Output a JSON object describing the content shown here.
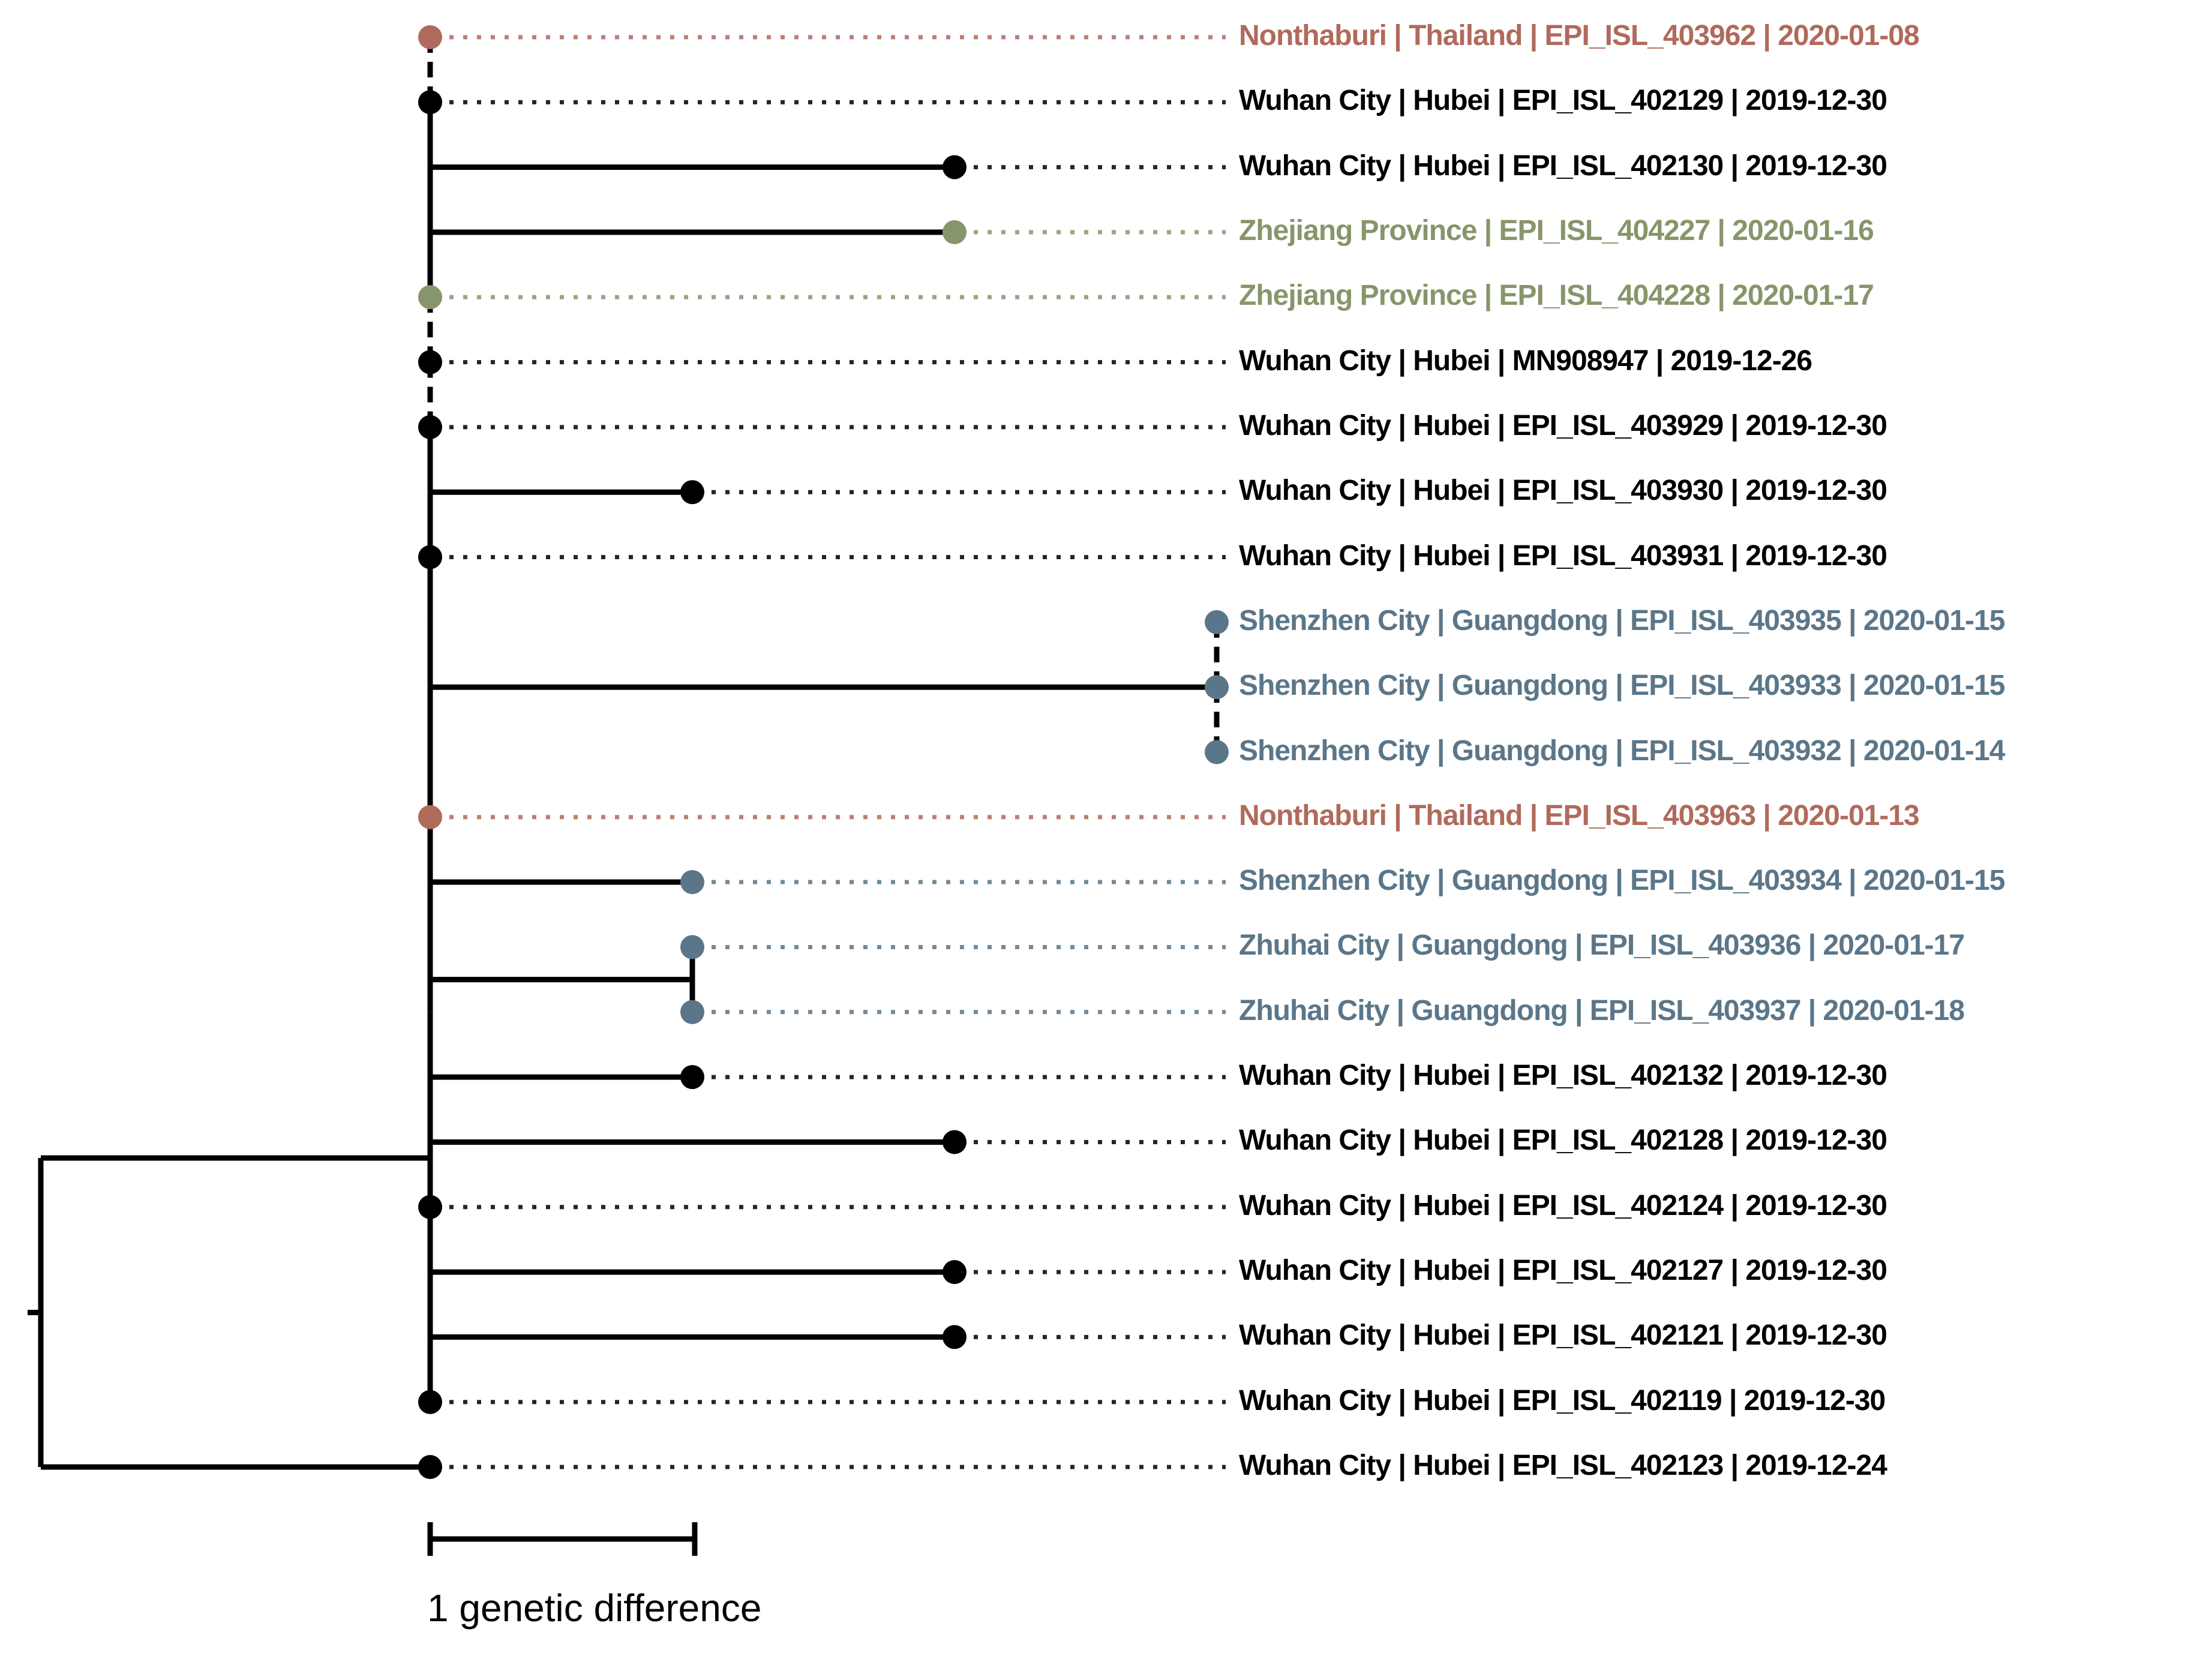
{
  "figure": {
    "type": "phylogenetic-tree",
    "scale_bar": {
      "label": "1 genetic difference",
      "units": 1
    },
    "colors": {
      "hubei": "#000000",
      "thailand": "#b06a5c",
      "zhejiang": "#87966a",
      "guangdong": "#5b7689"
    },
    "taxa": [
      {
        "row": 1,
        "label": "Nonthaburi | Thailand | EPI_ISL_403962 | 2020-01-08",
        "region": "thailand",
        "distance": 0,
        "attach": "trunk"
      },
      {
        "row": 2,
        "label": "Wuhan City | Hubei | EPI_ISL_402129 | 2019-12-30",
        "region": "hubei",
        "distance": 0,
        "attach": "trunk"
      },
      {
        "row": 3,
        "label": "Wuhan City | Hubei | EPI_ISL_402130 | 2019-12-30",
        "region": "hubei",
        "distance": 2,
        "attach": "branch"
      },
      {
        "row": 4,
        "label": "Zhejiang Province | EPI_ISL_404227 | 2020-01-16",
        "region": "zhejiang",
        "distance": 2,
        "attach": "branch"
      },
      {
        "row": 5,
        "label": "Zhejiang Province | EPI_ISL_404228 | 2020-01-17",
        "region": "zhejiang",
        "distance": 0,
        "attach": "trunk"
      },
      {
        "row": 6,
        "label": "Wuhan City | Hubei | MN908947 | 2019-12-26",
        "region": "hubei",
        "distance": 0,
        "attach": "trunk"
      },
      {
        "row": 7,
        "label": "Wuhan City | Hubei | EPI_ISL_403929 | 2019-12-30",
        "region": "hubei",
        "distance": 0,
        "attach": "trunk"
      },
      {
        "row": 8,
        "label": "Wuhan City | Hubei | EPI_ISL_403930 | 2019-12-30",
        "region": "hubei",
        "distance": 1,
        "attach": "branch"
      },
      {
        "row": 9,
        "label": "Wuhan City | Hubei | EPI_ISL_403931 | 2019-12-30",
        "region": "hubei",
        "distance": 0,
        "attach": "trunk"
      },
      {
        "row": 10,
        "label": "Shenzhen City | Guangdong | EPI_ISL_403935 | 2020-01-15",
        "region": "guangdong",
        "distance": 3,
        "attach": "trio"
      },
      {
        "row": 11,
        "label": "Shenzhen City | Guangdong | EPI_ISL_403933 | 2020-01-15",
        "region": "guangdong",
        "distance": 3,
        "attach": "trio"
      },
      {
        "row": 12,
        "label": "Shenzhen City | Guangdong | EPI_ISL_403932 | 2020-01-14",
        "region": "guangdong",
        "distance": 3,
        "attach": "trio"
      },
      {
        "row": 13,
        "label": "Nonthaburi | Thailand | EPI_ISL_403963 | 2020-01-13",
        "region": "thailand",
        "distance": 0,
        "attach": "trunk"
      },
      {
        "row": 14,
        "label": "Shenzhen City | Guangdong | EPI_ISL_403934 | 2020-01-15",
        "region": "guangdong",
        "distance": 1,
        "attach": "branch"
      },
      {
        "row": 15,
        "label": "Zhuhai City | Guangdong | EPI_ISL_403936 | 2020-01-17",
        "region": "guangdong",
        "distance": 1,
        "attach": "cherry"
      },
      {
        "row": 16,
        "label": "Zhuhai City | Guangdong | EPI_ISL_403937 | 2020-01-18",
        "region": "guangdong",
        "distance": 1,
        "attach": "cherry"
      },
      {
        "row": 17,
        "label": "Wuhan City | Hubei | EPI_ISL_402132 | 2019-12-30",
        "region": "hubei",
        "distance": 1,
        "attach": "branch"
      },
      {
        "row": 18,
        "label": "Wuhan City | Hubei | EPI_ISL_402128 | 2019-12-30",
        "region": "hubei",
        "distance": 2,
        "attach": "branch"
      },
      {
        "row": 19,
        "label": "Wuhan City | Hubei | EPI_ISL_402124 | 2019-12-30",
        "region": "hubei",
        "distance": 0,
        "attach": "trunk"
      },
      {
        "row": 20,
        "label": "Wuhan City | Hubei | EPI_ISL_402127 | 2019-12-30",
        "region": "hubei",
        "distance": 2,
        "attach": "branch"
      },
      {
        "row": 21,
        "label": "Wuhan City | Hubei | EPI_ISL_402121 | 2019-12-30",
        "region": "hubei",
        "distance": 2,
        "attach": "branch"
      },
      {
        "row": 22,
        "label": "Wuhan City | Hubei | EPI_ISL_402119 | 2019-12-30",
        "region": "hubei",
        "distance": 0,
        "attach": "trunk"
      },
      {
        "row": 23,
        "label": "Wuhan City | Hubei | EPI_ISL_402123 | 2019-12-24",
        "region": "hubei",
        "distance": 0,
        "attach": "root"
      }
    ],
    "structure": {
      "trunk_rows": [
        1,
        22
      ],
      "dashed_trunk_between_rows": [
        [
          1,
          2
        ],
        [
          5,
          6
        ],
        [
          6,
          7
        ]
      ],
      "trio_rows": [
        10,
        11,
        12
      ],
      "trio_stem_row": 11,
      "dashed_trio_between_rows": [
        [
          10,
          11
        ],
        [
          11,
          12
        ]
      ],
      "cherry_rows": [
        15,
        16
      ],
      "root_child_row": 23
    }
  }
}
